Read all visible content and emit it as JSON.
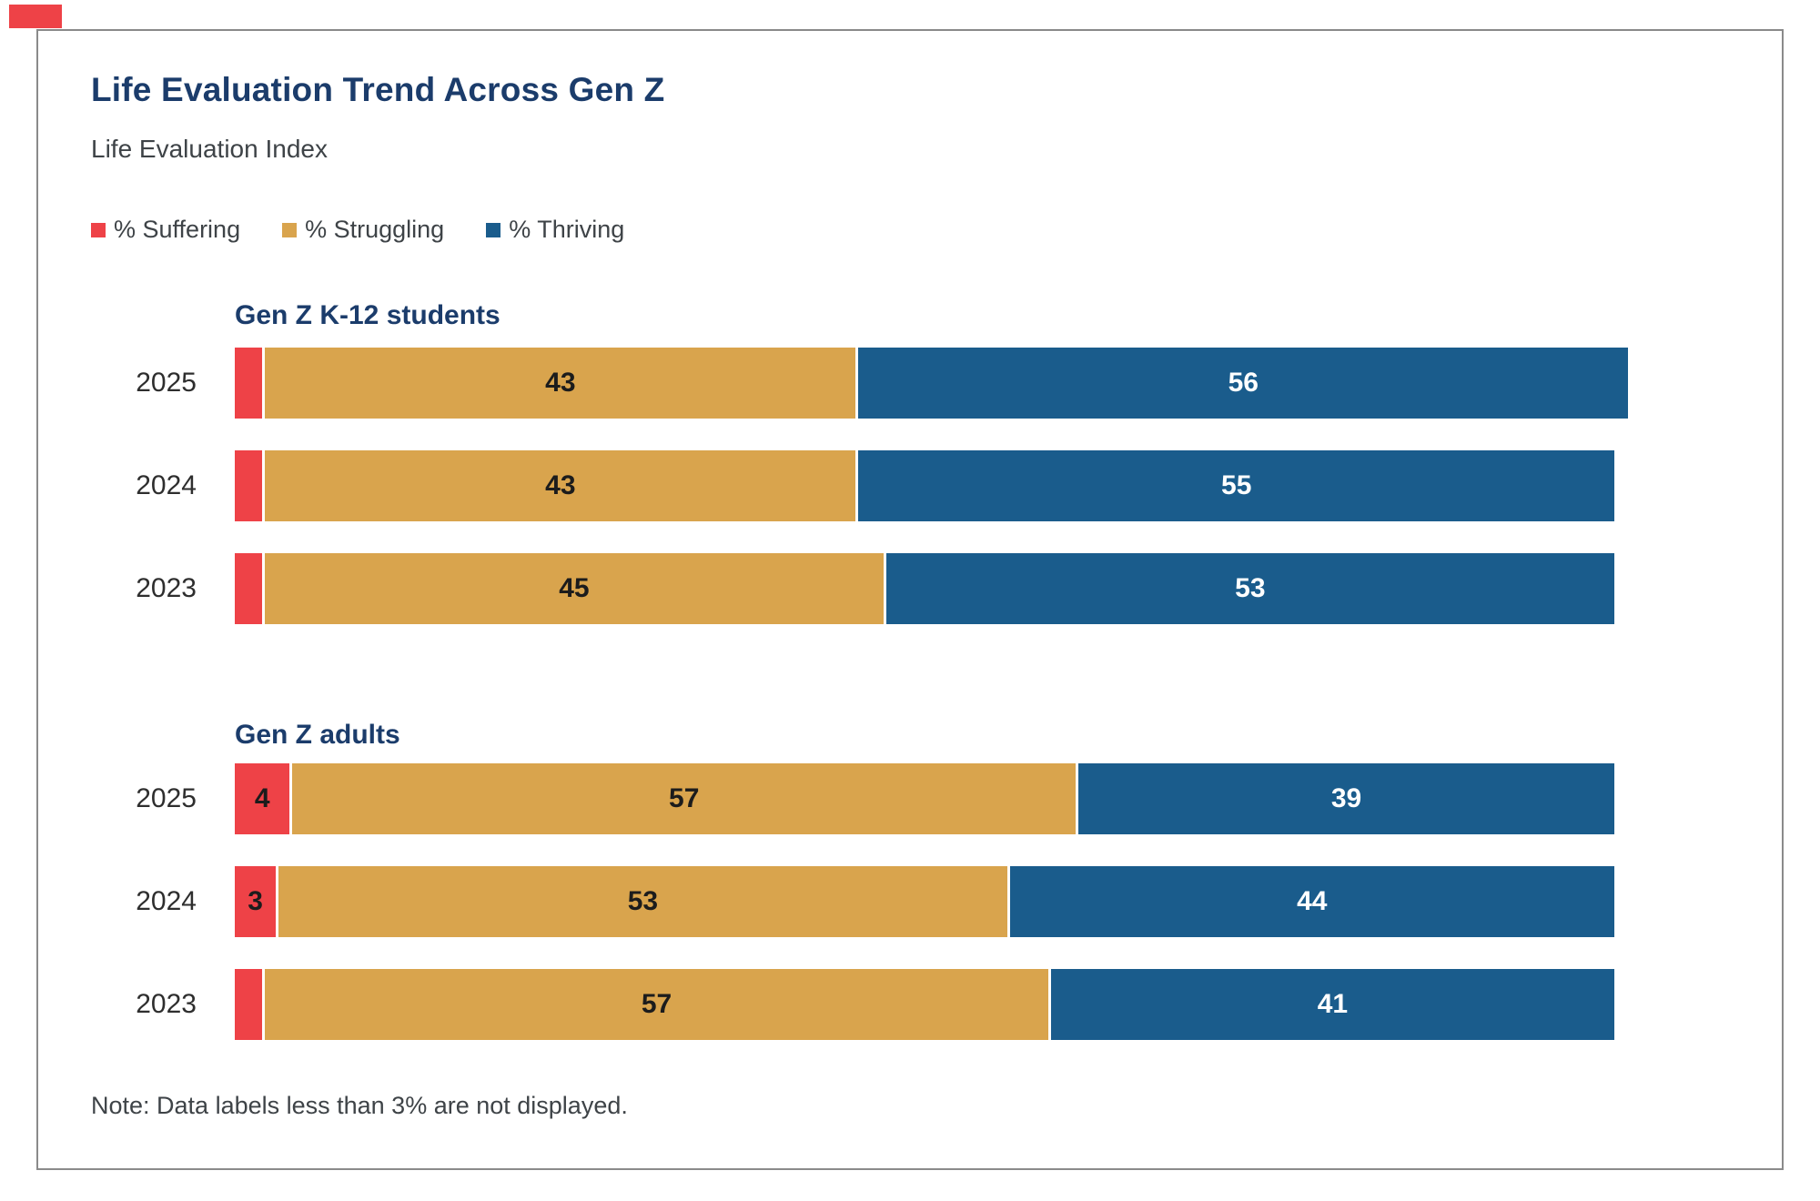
{
  "page": {
    "corner_mark_color": "#ee4247",
    "frame_border_color": "#8a8a8a",
    "background": "#ffffff"
  },
  "header": {
    "title": "Life Evaluation Trend Across Gen Z",
    "subtitle": "Life Evaluation Index"
  },
  "legend": [
    {
      "label": "% Suffering",
      "color": "#ee4247"
    },
    {
      "label": "% Struggling",
      "color": "#d9a44d"
    },
    {
      "label": "% Thriving",
      "color": "#1a5c8c"
    }
  ],
  "note": "Note: Data labels less than 3% are not displayed.",
  "chart_data": {
    "type": "bar",
    "orientation": "horizontal",
    "stacked": true,
    "unit": "percent",
    "axis_range": [
      0,
      100
    ],
    "label_min_threshold": 3,
    "series": [
      "% Suffering",
      "% Struggling",
      "% Thriving"
    ],
    "series_keys": [
      "suffering",
      "struggling",
      "thriving"
    ],
    "series_colors": [
      "#ee4247",
      "#d9a44d",
      "#1a5c8c"
    ],
    "label_colors": [
      "#1c1c1c",
      "#1c1c1c",
      "#ffffff"
    ],
    "groups": [
      {
        "title": "Gen Z K-12 students",
        "rows": [
          {
            "year": "2025",
            "values": [
              2,
              43,
              56
            ]
          },
          {
            "year": "2024",
            "values": [
              2,
              43,
              55
            ]
          },
          {
            "year": "2023",
            "values": [
              2,
              45,
              53
            ]
          }
        ]
      },
      {
        "title": "Gen Z adults",
        "rows": [
          {
            "year": "2025",
            "values": [
              4,
              57,
              39
            ]
          },
          {
            "year": "2024",
            "values": [
              3,
              53,
              44
            ]
          },
          {
            "year": "2023",
            "values": [
              2,
              57,
              41
            ]
          }
        ]
      }
    ]
  }
}
